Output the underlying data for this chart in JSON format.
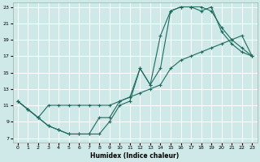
{
  "xlabel": "Humidex (Indice chaleur)",
  "bg_color": "#cfe8e8",
  "grid_color": "#ffffff",
  "line_color": "#1e6b5e",
  "xlim": [
    -0.5,
    23.5
  ],
  "ylim": [
    6.5,
    23.5
  ],
  "xticks": [
    0,
    1,
    2,
    3,
    4,
    5,
    6,
    7,
    8,
    9,
    10,
    11,
    12,
    13,
    14,
    15,
    16,
    17,
    18,
    19,
    20,
    21,
    22,
    23
  ],
  "yticks": [
    7,
    9,
    11,
    13,
    15,
    17,
    19,
    21,
    23
  ],
  "line1_x": [
    0,
    1,
    2,
    3,
    4,
    5,
    6,
    7,
    8,
    9,
    10,
    11,
    12,
    13,
    14,
    15,
    16,
    17,
    18,
    19,
    20,
    21,
    22,
    23
  ],
  "line1_y": [
    11.5,
    10.5,
    9.5,
    8.5,
    8.0,
    7.5,
    7.5,
    7.5,
    9.5,
    9.5,
    11.5,
    12.0,
    15.5,
    13.5,
    19.5,
    22.5,
    23.0,
    23.0,
    23.0,
    22.5,
    20.5,
    19.0,
    18.0,
    17.0
  ],
  "line2_x": [
    0,
    1,
    2,
    3,
    4,
    5,
    6,
    7,
    8,
    9,
    10,
    11,
    12,
    13,
    14,
    15,
    16,
    17,
    18,
    19,
    20,
    21,
    22,
    23
  ],
  "line2_y": [
    11.5,
    10.5,
    9.5,
    8.5,
    8.0,
    7.5,
    7.5,
    7.5,
    7.5,
    9.0,
    11.0,
    11.5,
    15.5,
    13.5,
    15.5,
    22.5,
    23.0,
    23.0,
    22.5,
    23.0,
    20.0,
    18.5,
    17.5,
    17.0
  ],
  "line3_x": [
    0,
    1,
    2,
    3,
    4,
    5,
    6,
    7,
    8,
    9,
    10,
    11,
    12,
    13,
    14,
    15,
    16,
    17,
    18,
    19,
    20,
    21,
    22,
    23
  ],
  "line3_y": [
    11.5,
    10.5,
    9.5,
    11.0,
    11.0,
    11.0,
    11.0,
    11.0,
    11.0,
    11.0,
    11.5,
    12.0,
    12.5,
    13.0,
    13.5,
    15.5,
    16.5,
    17.0,
    17.5,
    18.0,
    18.5,
    19.0,
    19.5,
    17.0
  ]
}
